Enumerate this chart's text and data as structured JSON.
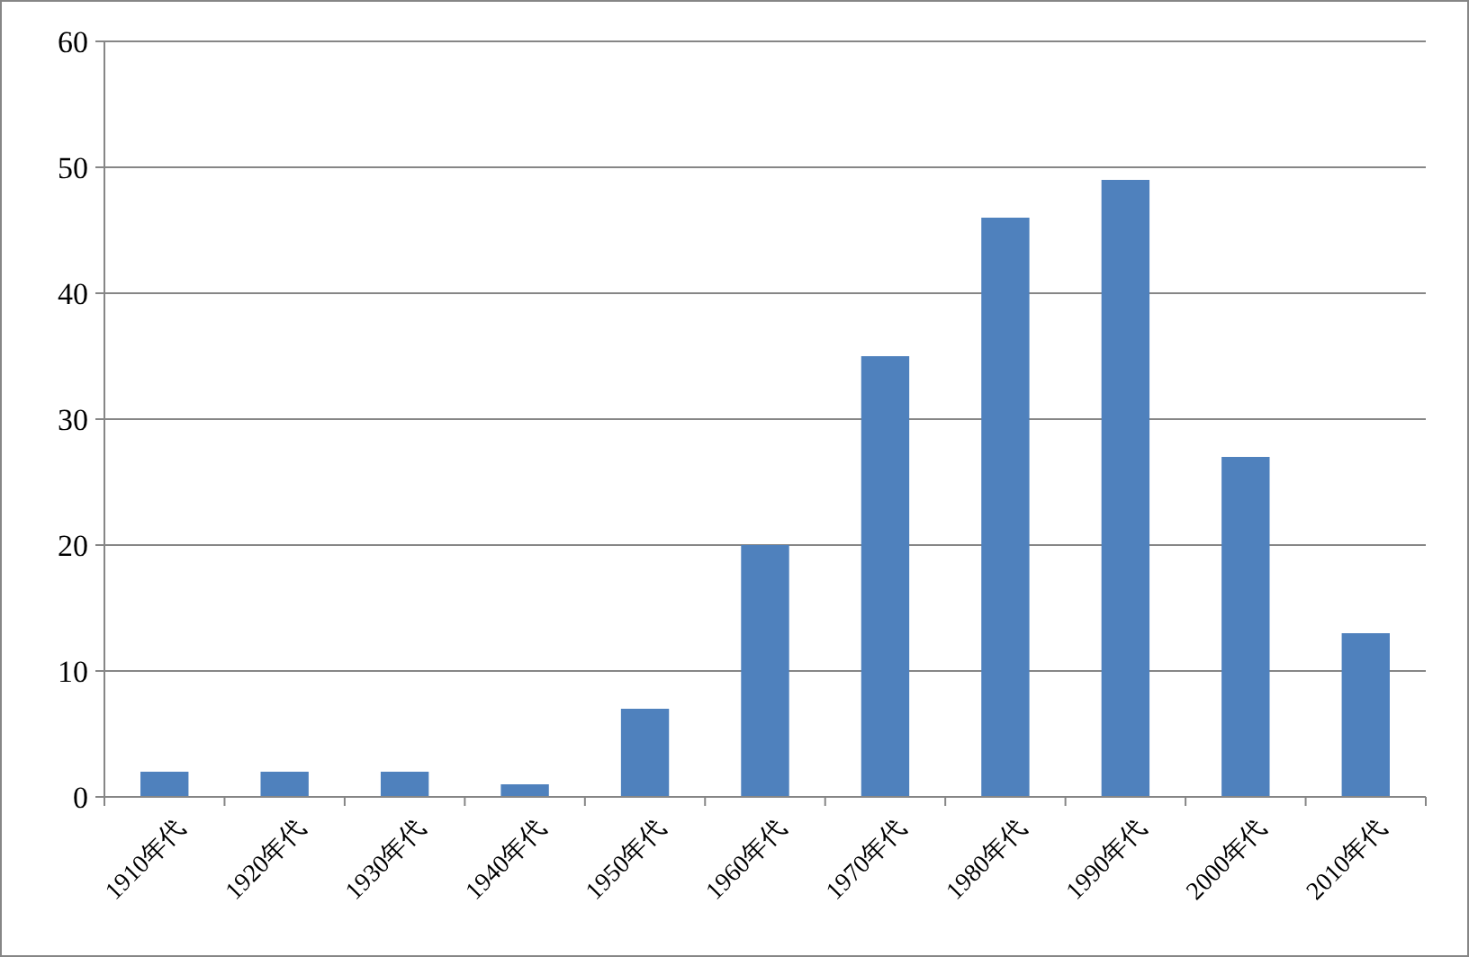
{
  "chart_data": {
    "type": "bar",
    "categories": [
      "1910年代",
      "1920年代",
      "1930年代",
      "1940年代",
      "1950年代",
      "1960年代",
      "1970年代",
      "1980年代",
      "1990年代",
      "2000年代",
      "2010年代"
    ],
    "values": [
      2,
      2,
      2,
      1,
      7,
      20,
      35,
      46,
      49,
      27,
      13
    ],
    "color": "#4f81bd",
    "ylim": [
      0,
      60
    ],
    "yticks": [
      0,
      10,
      20,
      30,
      40,
      50,
      60
    ],
    "grid": "y"
  }
}
